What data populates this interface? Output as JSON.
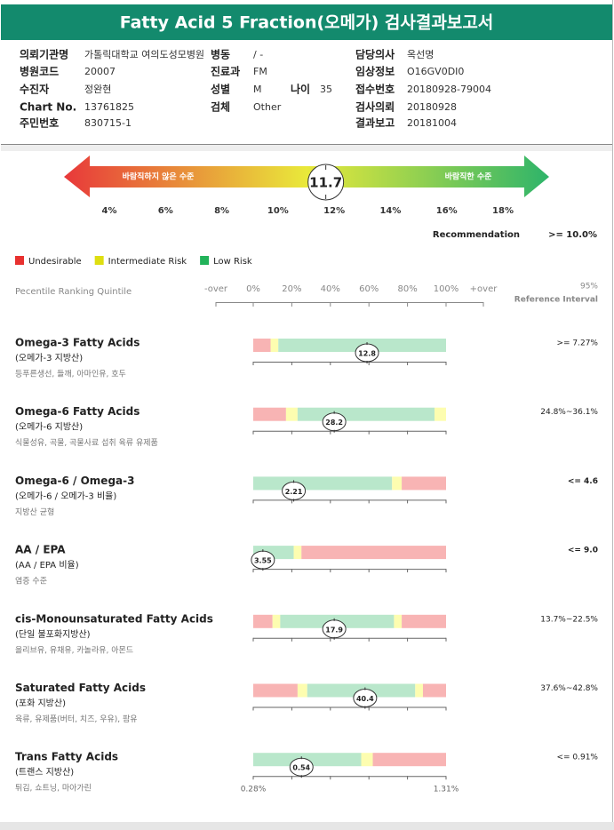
{
  "header": {
    "title": "Fatty Acid 5 Fraction(오메가) 검사결과보고서"
  },
  "info": {
    "left": [
      {
        "label": "의뢰기관명",
        "value": "가톨릭대학교 여의도성모병원"
      },
      {
        "label": "병원코드",
        "value": "20007"
      },
      {
        "label": "수진자",
        "value": "정완현"
      },
      {
        "label": "Chart No.",
        "value": "13761825"
      },
      {
        "label": "주민번호",
        "value": "830715-1"
      }
    ],
    "middle": [
      {
        "label": "병동",
        "value": "/ -"
      },
      {
        "label": "진료과",
        "value": "FM"
      },
      {
        "label": "성별",
        "value": "M"
      },
      {
        "label": "검체",
        "value": "Other"
      }
    ],
    "age": {
      "label": "나이",
      "value": "35"
    },
    "right": [
      {
        "label": "담당의사",
        "value": "옥선명"
      },
      {
        "label": "임상정보",
        "value": "O16GV0DI0"
      },
      {
        "label": "접수번호",
        "value": "20180928-79004"
      },
      {
        "label": "검사의뢰",
        "value": "20180928"
      },
      {
        "label": "결과보고",
        "value": "20181004"
      }
    ]
  },
  "gauge": {
    "left_label": "바람직하지 않은 수준",
    "right_label": "바람직한 수준",
    "value": 11.7,
    "xlim": [
      4,
      18
    ],
    "xticks": [
      {
        "value": 4,
        "label": "4%"
      },
      {
        "value": 6,
        "label": "6%"
      },
      {
        "value": 8,
        "label": "8%"
      },
      {
        "value": 10,
        "label": "10%"
      },
      {
        "value": 12,
        "label": "12%"
      },
      {
        "value": 14,
        "label": "14%"
      },
      {
        "value": 16,
        "label": "16%"
      },
      {
        "value": 18,
        "label": "18%"
      }
    ],
    "colors": [
      "#e8383a",
      "#e9e93a",
      "#2eb46a"
    ]
  },
  "recommendation": {
    "label": "Recommendation",
    "value": ">= 10.0%"
  },
  "legend": [
    {
      "label": "Undesirable",
      "color": "#e8312f"
    },
    {
      "label": "Intermediate Risk",
      "color": "#dede10"
    },
    {
      "label": "Low Risk",
      "color": "#22b35a"
    }
  ],
  "ranking": {
    "title": "Pecentile Ranking Quintile",
    "under_label": "-over",
    "over_label": "+over",
    "xlim": [
      0,
      100
    ],
    "xticks": [
      {
        "value": 0,
        "label": "0%"
      },
      {
        "value": 20,
        "label": "20%"
      },
      {
        "value": 40,
        "label": "40%"
      },
      {
        "value": 60,
        "label": "60%"
      },
      {
        "value": 80,
        "label": "80%"
      },
      {
        "value": 100,
        "label": "100%"
      }
    ],
    "reference_top": "95%",
    "reference_header": "Reference Interval"
  },
  "rows": [
    {
      "name": "Omega-3 Fatty Acids",
      "subtitle": "(오메가-3 지방산)",
      "foods": "등푸른생선, 들깨, 아마인유, 호두",
      "value": 12.8,
      "percentile": 59,
      "reference": ">= 7.27%",
      "bold": false,
      "segments": [
        {
          "color": "#f8b4b4",
          "width": 9
        },
        {
          "color": "#fdfdb0",
          "width": 4
        },
        {
          "color": "#b9e7cb",
          "width": 87
        }
      ]
    },
    {
      "name": "Omega-6 Fatty Acids",
      "subtitle": "(오메가-6 지방산)",
      "foods": "식물성유, 곡물, 곡물사료 섭취 육류 유제품",
      "value": 28.2,
      "percentile": 42,
      "reference": "24.8%~36.1%",
      "bold": false,
      "segments": [
        {
          "color": "#f8b4b4",
          "width": 17
        },
        {
          "color": "#fdfdb0",
          "width": 6
        },
        {
          "color": "#b9e7cb",
          "width": 71
        },
        {
          "color": "#fdfdb0",
          "width": 6
        }
      ]
    },
    {
      "name": "Omega-6 / Omega-3",
      "subtitle": "(오메가-6 / 오메가-3 비율)",
      "foods": "지방산 균형",
      "value": 2.21,
      "percentile": 21,
      "reference": "<= 4.6",
      "bold": true,
      "segments": [
        {
          "color": "#b9e7cb",
          "width": 72
        },
        {
          "color": "#fdfdb0",
          "width": 5
        },
        {
          "color": "#f8b4b4",
          "width": 23
        }
      ]
    },
    {
      "name": "AA / EPA",
      "subtitle": "(AA / EPA 비율)",
      "foods": "염증 수준",
      "value": 3.55,
      "percentile": 5,
      "reference": "<= 9.0",
      "bold": true,
      "segments": [
        {
          "color": "#b9e7cb",
          "width": 21
        },
        {
          "color": "#fdfdb0",
          "width": 4
        },
        {
          "color": "#f8b4b4",
          "width": 75
        }
      ]
    },
    {
      "name": "cis-Monounsaturated Fatty Acids",
      "subtitle": "(단일 불포화지방산)",
      "foods": "올리브유, 유채유, 카놀라유, 아몬드",
      "value": 17.9,
      "percentile": 42,
      "reference": "13.7%~22.5%",
      "bold": false,
      "segments": [
        {
          "color": "#f8b4b4",
          "width": 10
        },
        {
          "color": "#fdfdb0",
          "width": 4
        },
        {
          "color": "#b9e7cb",
          "width": 59
        },
        {
          "color": "#fdfdb0",
          "width": 4
        },
        {
          "color": "#f8b4b4",
          "width": 23
        }
      ]
    },
    {
      "name": "Saturated Fatty Acids",
      "subtitle": "(포화 지방산)",
      "foods": "육류, 유제품(버터, 치즈, 우유), 팜유",
      "value": 40.4,
      "percentile": 58,
      "reference": "37.6%~42.8%",
      "bold": false,
      "segments": [
        {
          "color": "#f8b4b4",
          "width": 23
        },
        {
          "color": "#fdfdb0",
          "width": 5
        },
        {
          "color": "#b9e7cb",
          "width": 56
        },
        {
          "color": "#fdfdb0",
          "width": 4
        },
        {
          "color": "#f8b4b4",
          "width": 12
        }
      ]
    },
    {
      "name": "Trans Fatty Acids",
      "subtitle": "(트랜스 지방산)",
      "foods": "튀김, 쇼트닝, 마아가린",
      "value": 0.54,
      "percentile": 25,
      "reference": "<= 0.91%",
      "bold": false,
      "scale_min_label": "0.28%",
      "scale_max_label": "1.31%",
      "segments": [
        {
          "color": "#b9e7cb",
          "width": 56
        },
        {
          "color": "#fdfdb0",
          "width": 6
        },
        {
          "color": "#f8b4b4",
          "width": 38
        }
      ]
    }
  ]
}
